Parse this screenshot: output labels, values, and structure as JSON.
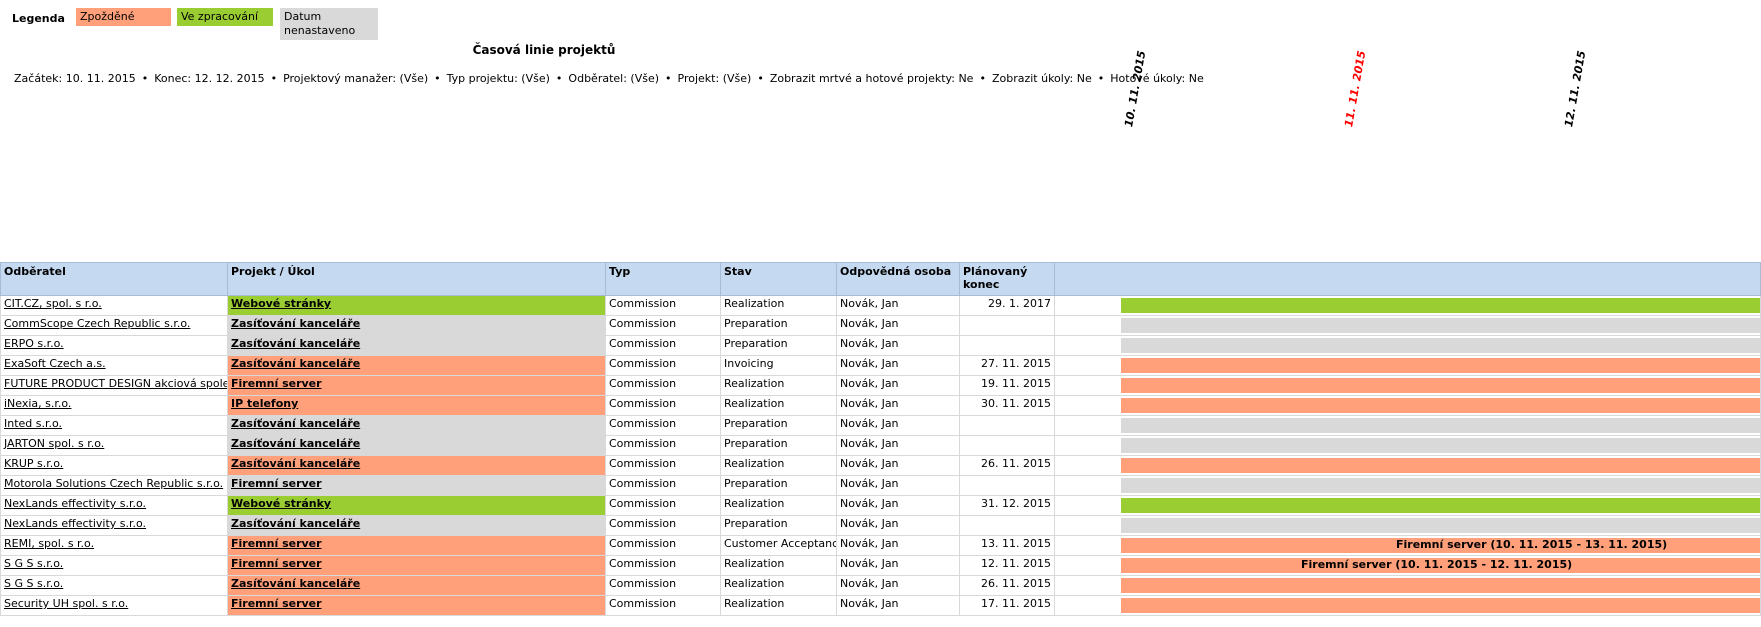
{
  "legend": {
    "title": "Legenda",
    "items": [
      {
        "label": "Zpožděné",
        "color": "#ffa07a"
      },
      {
        "label": "Ve zpracování",
        "color": "#9acd32"
      },
      {
        "label": "Datum nenastaveno",
        "color": "#d9d9d9"
      }
    ]
  },
  "report_title": "Časová linie projektů",
  "filters": [
    "Začátek: 10. 11. 2015",
    "Konec: 12. 12. 2015",
    "Projektový manažer: (Vše)",
    "Typ projektu: (Vše)",
    "Odběratel: (Vše)",
    "Projekt: (Vše)",
    "Zobrazit mrtvé a hotové projekty: Ne",
    "Zobrazit úkoly: Ne",
    "Hotové úkoly: Ne"
  ],
  "timeline_dates": [
    {
      "label": "10. 11. 2015",
      "color": "#000000"
    },
    {
      "label": "11. 11. 2015",
      "color": "#ff0000"
    },
    {
      "label": "12. 11. 2015",
      "color": "#000000"
    }
  ],
  "columns": [
    "Odběratel",
    "Projekt / Úkol",
    "Typ",
    "Stav",
    "Odpovědná osoba",
    "Plánovaný konec"
  ],
  "rows": [
    {
      "customer": "CIT.CZ, spol. s r.o.",
      "project": "Webové stránky",
      "type": "Commission",
      "status": "Realization",
      "person": "Novák, Jan",
      "end": "29. 1. 2017",
      "state": "prog",
      "bar_label": ""
    },
    {
      "customer": "CommScope Czech Republic s.r.o.",
      "project": "Zasíťování kanceláře",
      "type": "Commission",
      "status": "Preparation",
      "person": "Novák, Jan",
      "end": "",
      "state": "none",
      "bar_label": ""
    },
    {
      "customer": "ERPO s.r.o.",
      "project": "Zasíťování kanceláře",
      "type": "Commission",
      "status": "Preparation",
      "person": "Novák, Jan",
      "end": "",
      "state": "none",
      "bar_label": ""
    },
    {
      "customer": "ExaSoft Czech a.s.",
      "project": "Zasíťování kanceláře",
      "type": "Commission",
      "status": "Invoicing",
      "person": "Novák, Jan",
      "end": "27. 11. 2015",
      "state": "late",
      "bar_label": ""
    },
    {
      "customer": "FUTURE PRODUCT DESIGN akciová společnost",
      "project": "Firemní server",
      "type": "Commission",
      "status": "Realization",
      "person": "Novák, Jan",
      "end": "19. 11. 2015",
      "state": "late",
      "bar_label": "",
      "tall": true
    },
    {
      "customer": "iNexia, s.r.o.",
      "project": "IP telefony",
      "type": "Commission",
      "status": "Realization",
      "person": "Novák, Jan",
      "end": "30. 11. 2015",
      "state": "late",
      "bar_label": ""
    },
    {
      "customer": "Inted s.r.o.",
      "project": "Zasíťování kanceláře",
      "type": "Commission",
      "status": "Preparation",
      "person": "Novák, Jan",
      "end": "",
      "state": "none",
      "bar_label": ""
    },
    {
      "customer": "JARTON spol. s r.o.",
      "project": "Zasíťování kanceláře",
      "type": "Commission",
      "status": "Preparation",
      "person": "Novák, Jan",
      "end": "",
      "state": "none",
      "bar_label": ""
    },
    {
      "customer": "KRUP s.r.o.",
      "project": "Zasíťování kanceláře",
      "type": "Commission",
      "status": "Realization",
      "person": "Novák, Jan",
      "end": "26. 11. 2015",
      "state": "late",
      "bar_label": ""
    },
    {
      "customer": "Motorola Solutions Czech Republic s.r.o.",
      "project": "Firemní server",
      "type": "Commission",
      "status": "Preparation",
      "person": "Novák, Jan",
      "end": "",
      "state": "none",
      "bar_label": ""
    },
    {
      "customer": "NexLands effectivity s.r.o.",
      "project": "Webové stránky",
      "type": "Commission",
      "status": "Realization",
      "person": "Novák, Jan",
      "end": "31. 12. 2015",
      "state": "prog",
      "bar_label": ""
    },
    {
      "customer": "NexLands effectivity s.r.o.",
      "project": "Zasíťování kanceláře",
      "type": "Commission",
      "status": "Preparation",
      "person": "Novák, Jan",
      "end": "",
      "state": "none",
      "bar_label": ""
    },
    {
      "customer": "REMI, spol. s r.o.",
      "project": "Firemní server",
      "type": "Commission",
      "status": "Customer Acceptance",
      "person": "Novák, Jan",
      "end": "13. 11. 2015",
      "state": "late",
      "bar_label": "Firemní server (10. 11. 2015 - 13. 11. 2015)"
    },
    {
      "customer": "S G S s.r.o.",
      "project": "Firemní server",
      "type": "Commission",
      "status": "Realization",
      "person": "Novák, Jan",
      "end": "12. 11. 2015",
      "state": "late",
      "bar_label": "Firemní server (10. 11. 2015 - 12. 11. 2015)"
    },
    {
      "customer": "S G S s.r.o.",
      "project": "Zasíťování kanceláře",
      "type": "Commission",
      "status": "Realization",
      "person": "Novák, Jan",
      "end": "26. 11. 2015",
      "state": "late",
      "bar_label": ""
    },
    {
      "customer": "Security UH spol. s r.o.",
      "project": "Firemní server",
      "type": "Commission",
      "status": "Realization",
      "person": "Novák, Jan",
      "end": "17. 11. 2015",
      "state": "late",
      "bar_label": ""
    }
  ]
}
